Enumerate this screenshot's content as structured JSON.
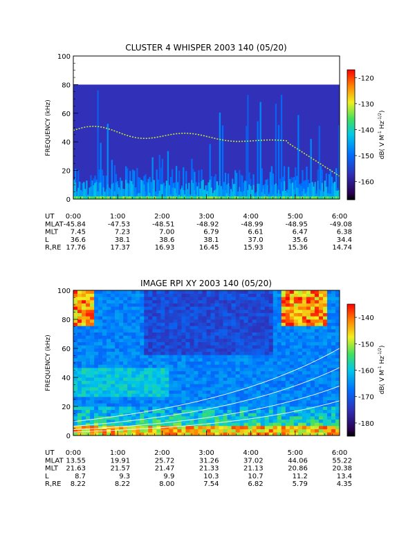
{
  "chart_data": [
    {
      "type": "heatmap",
      "title": "CLUSTER 4 WHISPER 2003 140 (05/20)",
      "ylabel": "FREQUENCY (kHz)",
      "ylim": [
        0,
        100
      ],
      "yticks": [
        "0",
        "20",
        "40",
        "60",
        "80",
        "100"
      ],
      "data_ymax": 80,
      "colorbar": {
        "label_parts": [
          "dB( V M",
          "-1",
          " Hz",
          "-1/2",
          ")"
        ],
        "range": [
          -167,
          -117
        ],
        "ticks": [
          "-120",
          "-130",
          "-140",
          "-150",
          "-160"
        ]
      },
      "ephemeris": {
        "row_labels": [
          "UT",
          "MLAT",
          "MLT",
          "L",
          "R,RE"
        ],
        "columns": [
          [
            "0:00",
            "-45.84",
            "7.45",
            "36.6",
            "17.76"
          ],
          [
            "1:00",
            "-47.53",
            "7.23",
            "38.1",
            "17.37"
          ],
          [
            "2:00",
            "-48.51",
            "7.00",
            "38.6",
            "16.93"
          ],
          [
            "3:00",
            "-48.92",
            "6.79",
            "38.1",
            "16.45"
          ],
          [
            "4:00",
            "-48.99",
            "6.61",
            "37.0",
            "15.93"
          ],
          [
            "5:00",
            "-48.95",
            "6.47",
            "35.6",
            "15.36"
          ],
          [
            "6:00",
            "-49.08",
            "6.38",
            "34.4",
            "14.74"
          ]
        ]
      }
    },
    {
      "type": "heatmap",
      "title": "IMAGE RPI XY 2003 140 (05/20)",
      "ylabel": "FREQUENCY (kHz)",
      "ylim": [
        0,
        100
      ],
      "yticks": [
        "0",
        "20",
        "40",
        "60",
        "80",
        "100"
      ],
      "data_ymax": 100,
      "colorbar": {
        "label_parts": [
          "dB( V M",
          "-1",
          " Hz",
          "-1/2",
          ")"
        ],
        "range": [
          -185,
          -135
        ],
        "ticks": [
          "-140",
          "-150",
          "-160",
          "-170",
          "-180"
        ]
      },
      "ephemeris": {
        "row_labels": [
          "UT",
          "MLAT",
          "MLT",
          "L",
          "R,RE"
        ],
        "columns": [
          [
            "0:00",
            "13.55",
            "21.63",
            "8.7",
            "8.22"
          ],
          [
            "1:00",
            "19.91",
            "21.57",
            "9.3",
            "8.22"
          ],
          [
            "2:00",
            "25.72",
            "21.47",
            "9.9",
            "8.00"
          ],
          [
            "3:00",
            "31.26",
            "21.33",
            "10.3",
            "7.54"
          ],
          [
            "4:00",
            "37.02",
            "21.13",
            "10.7",
            "6.82"
          ],
          [
            "5:00",
            "44.06",
            "20.86",
            "11.2",
            "5.79"
          ],
          [
            "6:00",
            "55.22",
            "20.38",
            "13.4",
            "4.35"
          ]
        ]
      }
    }
  ]
}
